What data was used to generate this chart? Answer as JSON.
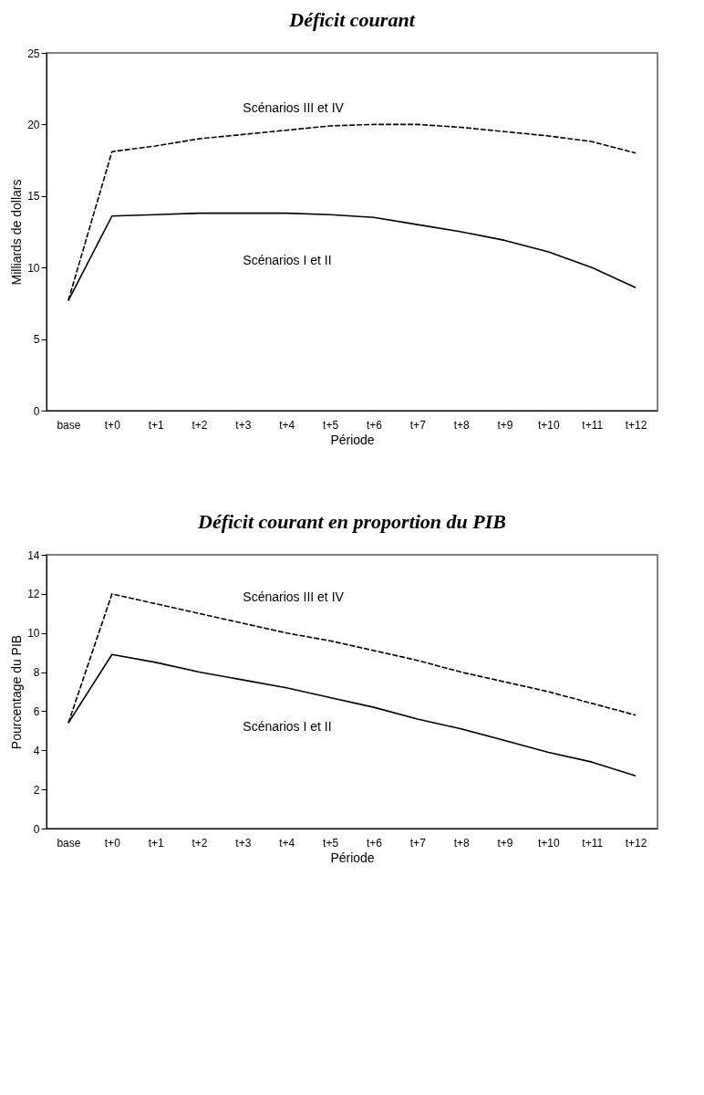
{
  "chart_data": [
    {
      "type": "line",
      "title": "Déficit courant",
      "xlabel": "Période",
      "ylabel": "Milliards de dollars",
      "categories": [
        "base",
        "t+0",
        "t+1",
        "t+2",
        "t+3",
        "t+4",
        "t+5",
        "t+6",
        "t+7",
        "t+8",
        "t+9",
        "t+10",
        "t+11",
        "t+12"
      ],
      "series": [
        {
          "name": "Scénarios III et IV",
          "color": "#000000",
          "line_style": "dashed",
          "values": [
            7.7,
            18.1,
            18.5,
            19.0,
            19.3,
            19.6,
            19.9,
            20.0,
            20.0,
            19.8,
            19.5,
            19.2,
            18.8,
            18.0
          ]
        },
        {
          "name": "Scénarios I et II",
          "color": "#000000",
          "line_style": "solid",
          "values": [
            7.7,
            13.6,
            13.7,
            13.8,
            13.8,
            13.8,
            13.7,
            13.5,
            13.0,
            12.5,
            11.9,
            11.1,
            10.0,
            8.6
          ]
        }
      ],
      "ylim": [
        0,
        25
      ],
      "yticks": [
        0,
        5,
        10,
        15,
        20,
        25
      ],
      "grid": false,
      "marker": "none"
    },
    {
      "type": "line",
      "title": "Déficit courant en proportion du PIB",
      "xlabel": "Période",
      "ylabel": "Pourcentage du PIB",
      "categories": [
        "base",
        "t+0",
        "t+1",
        "t+2",
        "t+3",
        "t+4",
        "t+5",
        "t+6",
        "t+7",
        "t+8",
        "t+9",
        "t+10",
        "t+11",
        "t+12"
      ],
      "series": [
        {
          "name": "Scénarios III et IV",
          "color": "#000000",
          "line_style": "dashed",
          "values": [
            5.4,
            12.0,
            11.5,
            11.0,
            10.5,
            10.0,
            9.6,
            9.1,
            8.6,
            8.0,
            7.5,
            7.0,
            6.4,
            5.8
          ]
        },
        {
          "name": "Scénarios I et II",
          "color": "#000000",
          "line_style": "solid",
          "values": [
            5.4,
            8.9,
            8.5,
            8.0,
            7.6,
            7.2,
            6.7,
            6.2,
            5.6,
            5.1,
            4.5,
            3.9,
            3.4,
            2.7
          ]
        }
      ],
      "ylim": [
        0,
        14
      ],
      "yticks": [
        0,
        2,
        4,
        6,
        8,
        10,
        12,
        14
      ],
      "grid": false,
      "marker": "none"
    }
  ]
}
